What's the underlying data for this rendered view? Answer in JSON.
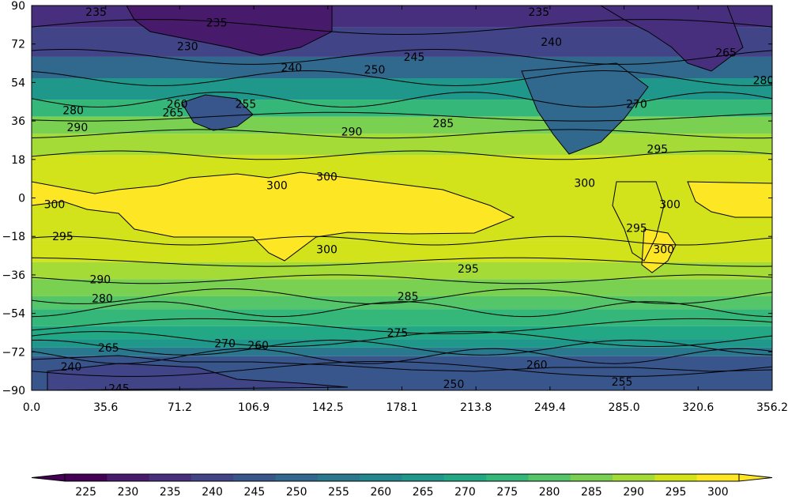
{
  "chart_data": {
    "type": "contour",
    "title": "",
    "xlabel": "",
    "ylabel": "",
    "x_ticks": [
      "0.0",
      "35.6",
      "71.2",
      "106.9",
      "142.5",
      "178.1",
      "213.8",
      "249.4",
      "285.0",
      "320.6",
      "356.2"
    ],
    "y_ticks": [
      "90",
      "72",
      "54",
      "36",
      "18",
      "0",
      "−18",
      "−36",
      "−54",
      "−72",
      "−90"
    ],
    "xlim": [
      0,
      356.2
    ],
    "ylim": [
      -90,
      90
    ],
    "colorbar": {
      "levels": [
        225,
        230,
        235,
        240,
        245,
        250,
        255,
        260,
        265,
        270,
        275,
        280,
        285,
        290,
        295,
        300
      ],
      "tick_labels": [
        "225",
        "230",
        "235",
        "240",
        "245",
        "250",
        "255",
        "260",
        "265",
        "270",
        "275",
        "280",
        "285",
        "290",
        "295",
        "300"
      ],
      "extend": "both",
      "colors": [
        "#440154",
        "#481a6c",
        "#472f7d",
        "#414487",
        "#39568c",
        "#31688e",
        "#2a788e",
        "#23888e",
        "#1f988b",
        "#22a884",
        "#35b779",
        "#54c568",
        "#7ad151",
        "#a5db36",
        "#d2e21b",
        "#fde725"
      ]
    },
    "contour_labels": [
      {
        "text": "235",
        "lon": 31,
        "lat": 87
      },
      {
        "text": "235",
        "lon": 89,
        "lat": 82
      },
      {
        "text": "230",
        "lon": 75,
        "lat": 71
      },
      {
        "text": "240",
        "lon": 125,
        "lat": 61
      },
      {
        "text": "255",
        "lon": 103,
        "lat": 44
      },
      {
        "text": "260",
        "lon": 70,
        "lat": 44
      },
      {
        "text": "265",
        "lon": 68,
        "lat": 40
      },
      {
        "text": "280",
        "lon": 20,
        "lat": 41
      },
      {
        "text": "290",
        "lon": 22,
        "lat": 33
      },
      {
        "text": "285",
        "lon": 198,
        "lat": 35
      },
      {
        "text": "290",
        "lon": 154,
        "lat": 31
      },
      {
        "text": "295",
        "lon": 301,
        "lat": 23
      },
      {
        "text": "300",
        "lon": 142,
        "lat": 10
      },
      {
        "text": "300",
        "lon": 118,
        "lat": 6
      },
      {
        "text": "300",
        "lon": 266,
        "lat": 7
      },
      {
        "text": "300",
        "lon": 11,
        "lat": -3
      },
      {
        "text": "300",
        "lon": 307,
        "lat": -3
      },
      {
        "text": "295",
        "lon": 15,
        "lat": -18
      },
      {
        "text": "295",
        "lon": 291,
        "lat": -14
      },
      {
        "text": "300",
        "lon": 142,
        "lat": -24
      },
      {
        "text": "300",
        "lon": 304,
        "lat": -24
      },
      {
        "text": "295",
        "lon": 210,
        "lat": -33
      },
      {
        "text": "290",
        "lon": 33,
        "lat": -38
      },
      {
        "text": "280",
        "lon": 34,
        "lat": -47
      },
      {
        "text": "285",
        "lon": 181,
        "lat": -46
      },
      {
        "text": "275",
        "lon": 176,
        "lat": -63
      },
      {
        "text": "270",
        "lon": 93,
        "lat": -68
      },
      {
        "text": "260",
        "lon": 109,
        "lat": -69
      },
      {
        "text": "265",
        "lon": 37,
        "lat": -70
      },
      {
        "text": "240",
        "lon": 19,
        "lat": -79
      },
      {
        "text": "245",
        "lon": 42,
        "lat": -89
      },
      {
        "text": "250",
        "lon": 203,
        "lat": -87
      },
      {
        "text": "255",
        "lon": 284,
        "lat": -86
      },
      {
        "text": "260",
        "lon": 243,
        "lat": -78
      },
      {
        "text": "235",
        "lon": 244,
        "lat": 87
      },
      {
        "text": "240",
        "lon": 250,
        "lat": 73
      },
      {
        "text": "245",
        "lon": 184,
        "lat": 66
      },
      {
        "text": "250",
        "lon": 165,
        "lat": 60
      },
      {
        "text": "265",
        "lon": 334,
        "lat": 68
      },
      {
        "text": "280",
        "lon": 352,
        "lat": 55
      },
      {
        "text": "270",
        "lon": 291,
        "lat": 44
      }
    ],
    "grid": false,
    "legend": "colorbar-bottom"
  }
}
